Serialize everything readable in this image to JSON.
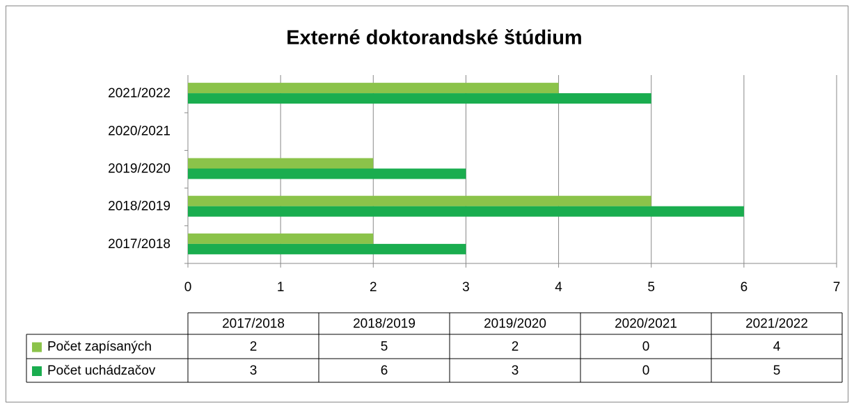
{
  "chart_data": {
    "type": "hbar",
    "title": "Externé doktorandské štúdium",
    "categories": [
      "2017/2018",
      "2018/2019",
      "2019/2020",
      "2020/2021",
      "2021/2022"
    ],
    "series": [
      {
        "name": "Počet zapísaných",
        "color": "#8bc34a",
        "values": [
          2,
          5,
          2,
          0,
          4
        ]
      },
      {
        "name": "Počet uchádzačov",
        "color": "#1aad4f",
        "values": [
          3,
          6,
          3,
          0,
          5
        ]
      }
    ],
    "xlim": [
      0,
      7
    ],
    "xticks": [
      0,
      1,
      2,
      3,
      4,
      5,
      6,
      7
    ],
    "grid": true
  }
}
